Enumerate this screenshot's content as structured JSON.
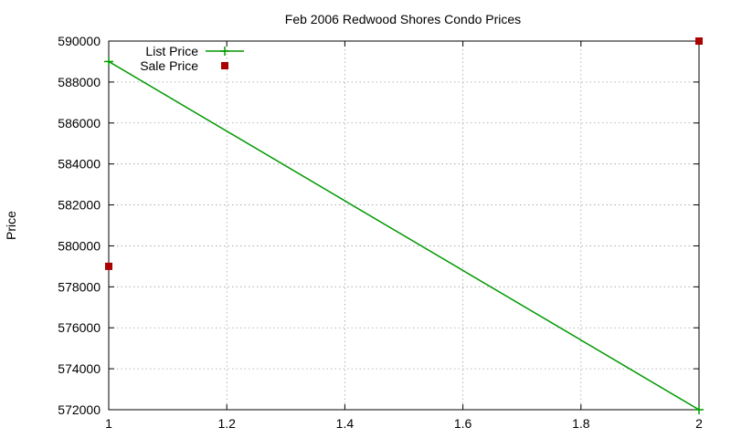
{
  "chart_data": {
    "type": "line",
    "title": "Feb 2006 Redwood Shores Condo Prices",
    "xlabel": "",
    "ylabel": "Price",
    "xlim": [
      1,
      2
    ],
    "ylim": [
      572000,
      590000
    ],
    "x_ticks": [
      1,
      1.2,
      1.4,
      1.6,
      1.8,
      2
    ],
    "x_tick_labels": [
      "1",
      "1.2",
      "1.4",
      "1.6",
      "1.8",
      "2"
    ],
    "y_ticks": [
      572000,
      574000,
      576000,
      578000,
      580000,
      582000,
      584000,
      586000,
      588000,
      590000
    ],
    "y_tick_labels": [
      "572000",
      "574000",
      "576000",
      "578000",
      "580000",
      "582000",
      "584000",
      "586000",
      "588000",
      "590000"
    ],
    "grid": true,
    "legend_position": "top-left",
    "series": [
      {
        "name": "List Price",
        "style": "linespoints",
        "marker": "plus",
        "color": "#009900",
        "x": [
          1,
          2
        ],
        "y": [
          589000,
          572000
        ]
      },
      {
        "name": "Sale Price",
        "style": "points",
        "marker": "square",
        "color": "#aa0000",
        "x": [
          1,
          2
        ],
        "y": [
          579000,
          590000
        ]
      }
    ]
  }
}
